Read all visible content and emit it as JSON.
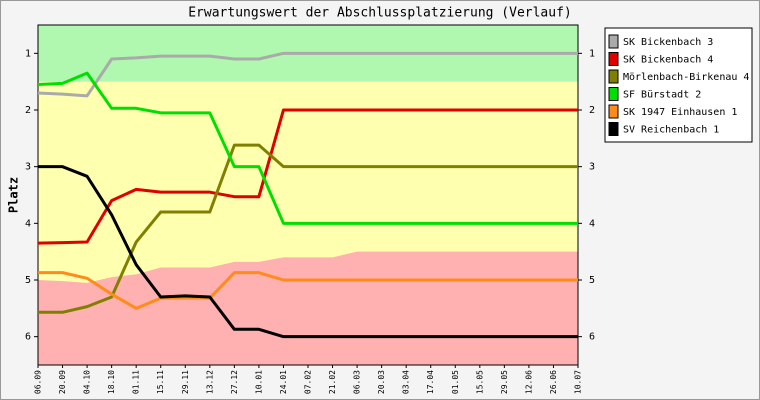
{
  "chart_data": {
    "type": "line",
    "title": "Erwartungswert der Abschlussplatzierung (Verlauf)",
    "y_label": "Platz",
    "categories": [
      "06.09",
      "20.09",
      "04.10",
      "18.10",
      "01.11",
      "15.11",
      "29.11",
      "13.12",
      "27.12",
      "10.01",
      "24.01",
      "07.02",
      "21.02",
      "06.03",
      "20.03",
      "03.04",
      "17.04",
      "01.05",
      "15.05",
      "29.05",
      "12.06",
      "26.06",
      "10.07"
    ],
    "ylim": [
      6.5,
      0.5
    ],
    "yticks": [
      1,
      2,
      3,
      4,
      5,
      6
    ],
    "zone_colors": [
      "#b0f8b0",
      "#ffffb0",
      "#ffb0b0"
    ],
    "zone_boundaries": [
      [
        1.5,
        1.5,
        1.5,
        1.5,
        1.5,
        1.5,
        1.5,
        1.5,
        1.5,
        1.5,
        1.5,
        1.5,
        1.5,
        1.5,
        1.5,
        1.5,
        1.5,
        1.5,
        1.5,
        1.5,
        1.5,
        1.5,
        1.5
      ],
      [
        5.0,
        5.02,
        5.05,
        4.95,
        4.9,
        4.78,
        4.78,
        4.78,
        4.68,
        4.68,
        4.6,
        4.6,
        4.6,
        4.5,
        4.5,
        4.5,
        4.5,
        4.5,
        4.5,
        4.5,
        4.5,
        4.5,
        4.5
      ]
    ],
    "series": [
      {
        "name": "SK Bickenbach 3",
        "color": "#aaaaaa",
        "values": [
          1.7,
          1.72,
          1.75,
          1.1,
          1.08,
          1.05,
          1.05,
          1.05,
          1.1,
          1.1,
          1,
          1,
          1,
          1,
          1,
          1,
          1,
          1,
          1,
          1,
          1,
          1,
          1
        ]
      },
      {
        "name": "SK Bickenbach 4",
        "color": "#e00000",
        "values": [
          4.35,
          4.34,
          4.33,
          3.6,
          3.4,
          3.45,
          3.45,
          3.45,
          3.53,
          3.53,
          2,
          2,
          2,
          2,
          2,
          2,
          2,
          2,
          2,
          2,
          2,
          2,
          2
        ]
      },
      {
        "name": "Mörlenbach-Birkenau 4",
        "color": "#808000",
        "values": [
          5.57,
          5.57,
          5.47,
          5.3,
          4.33,
          3.8,
          3.8,
          3.8,
          2.62,
          2.62,
          3,
          3,
          3,
          3,
          3,
          3,
          3,
          3,
          3,
          3,
          3,
          3,
          3
        ]
      },
      {
        "name": "SF Bürstadt 2",
        "color": "#00e000",
        "values": [
          1.55,
          1.53,
          1.35,
          1.97,
          1.97,
          2.05,
          2.05,
          2.05,
          3,
          3,
          4,
          4,
          4,
          4,
          4,
          4,
          4,
          4,
          4,
          4,
          4,
          4,
          4
        ]
      },
      {
        "name": "SK 1947 Einhausen 1",
        "color": "#ff8c1a",
        "values": [
          4.87,
          4.87,
          4.97,
          5.25,
          5.5,
          5.32,
          5.32,
          5.32,
          4.87,
          4.87,
          5,
          5,
          5,
          5,
          5,
          5,
          5,
          5,
          5,
          5,
          5,
          5,
          5
        ]
      },
      {
        "name": "SV Reichenbach 1",
        "color": "#000000",
        "values": [
          3,
          3,
          3.17,
          3.85,
          4.73,
          5.3,
          5.28,
          5.3,
          5.87,
          5.87,
          6,
          6,
          6,
          6,
          6,
          6,
          6,
          6,
          6,
          6,
          6,
          6,
          6
        ]
      }
    ]
  }
}
